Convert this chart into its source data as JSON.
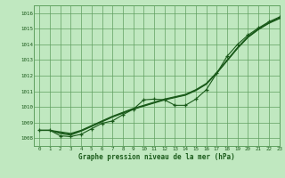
{
  "background_color": "#c0e8c0",
  "plot_bg_color": "#c0e8c0",
  "grid_color": "#60a060",
  "line_color": "#1a5a1a",
  "xlabel": "Graphe pression niveau de la mer (hPa)",
  "ylim": [
    1007.5,
    1016.5
  ],
  "xlim": [
    -0.5,
    23
  ],
  "yticks": [
    1008,
    1009,
    1010,
    1011,
    1012,
    1013,
    1014,
    1015,
    1016
  ],
  "xticks": [
    0,
    1,
    2,
    3,
    4,
    5,
    6,
    7,
    8,
    9,
    10,
    11,
    12,
    13,
    14,
    15,
    16,
    17,
    18,
    19,
    20,
    21,
    22,
    23
  ],
  "smooth1": [
    1008.5,
    1008.5,
    1008.4,
    1008.3,
    1008.5,
    1008.8,
    1009.1,
    1009.4,
    1009.65,
    1009.9,
    1010.1,
    1010.3,
    1010.5,
    1010.65,
    1010.8,
    1011.1,
    1011.5,
    1012.2,
    1013.0,
    1013.8,
    1014.5,
    1015.0,
    1015.4,
    1015.7
  ],
  "smooth2": [
    1008.5,
    1008.5,
    1008.3,
    1008.2,
    1008.45,
    1008.75,
    1009.05,
    1009.35,
    1009.6,
    1009.85,
    1010.05,
    1010.25,
    1010.45,
    1010.6,
    1010.75,
    1011.05,
    1011.45,
    1012.15,
    1012.95,
    1013.75,
    1014.45,
    1014.95,
    1015.35,
    1015.65
  ],
  "smooth3": [
    1008.5,
    1008.5,
    1008.35,
    1008.25,
    1008.47,
    1008.77,
    1009.07,
    1009.37,
    1009.62,
    1009.87,
    1010.07,
    1010.27,
    1010.47,
    1010.62,
    1010.77,
    1011.07,
    1011.47,
    1012.17,
    1012.97,
    1013.77,
    1014.47,
    1014.97,
    1015.37,
    1015.67
  ],
  "jagged": [
    1008.5,
    1008.5,
    1008.15,
    1008.1,
    1008.25,
    1008.6,
    1008.95,
    1009.1,
    1009.5,
    1009.85,
    1010.45,
    1010.5,
    1010.45,
    1010.1,
    1010.1,
    1010.5,
    1011.1,
    1012.15,
    1013.25,
    1014.0,
    1014.6,
    1015.05,
    1015.45,
    1015.75
  ]
}
